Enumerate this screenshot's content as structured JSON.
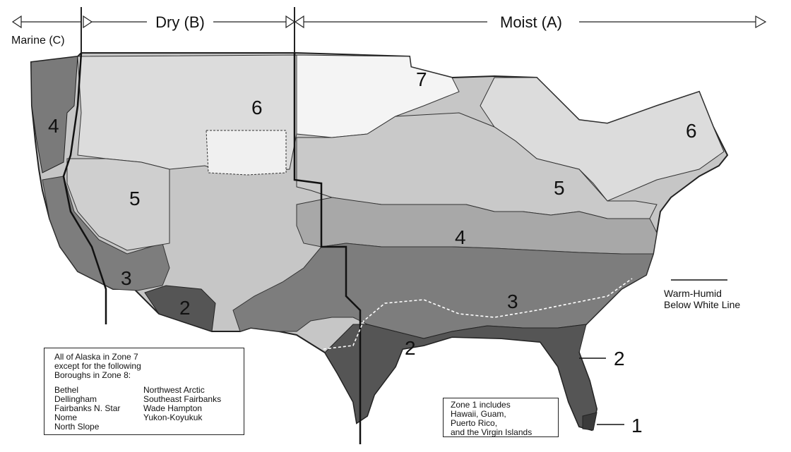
{
  "header": {
    "marine_label": "Marine (C)",
    "dry_label": "Dry (B)",
    "moist_label": "Moist (A)"
  },
  "zone_labels": {
    "z1": "1",
    "z2_sw": "2",
    "z2_gulf": "2",
    "z2_fl": "2",
    "z3_ca": "3",
    "z3_se": "3",
    "z4_nw": "4",
    "z4_mid": "4",
    "z5_w": "5",
    "z5_oh": "5",
    "z6_w": "6",
    "z6_ne": "6",
    "z7": "7"
  },
  "warm_humid": {
    "line1": "Warm-Humid",
    "line2": "Below White Line"
  },
  "alaska_box": {
    "intro1": "All of Alaska in Zone 7",
    "intro2": "except for the following",
    "intro3": "Boroughs in Zone 8:",
    "col1": [
      "Bethel",
      "Dellingham",
      "Fairbanks N. Star",
      "Nome",
      "North Slope"
    ],
    "col2": [
      "Northwest Arctic",
      "Southeast Fairbanks",
      "Wade Hampton",
      "Yukon-Koyukuk"
    ]
  },
  "zone1_box": {
    "line1": "Zone 1 includes",
    "line2": "Hawaii, Guam,",
    "line3": "Puerto Rico,",
    "line4": "and the Virgin Islands"
  },
  "colors": {
    "zone1": "#3a3a3a",
    "zone2": "#555555",
    "zone3": "#7d7d7d",
    "zone4": "#a8a8a8",
    "zone4_marine": "#7a7a7a",
    "zone5": "#c6c6c6",
    "zone6": "#dcdcdc",
    "zone7": "#f4f4f4",
    "warm_humid_line": "#ffffff"
  }
}
